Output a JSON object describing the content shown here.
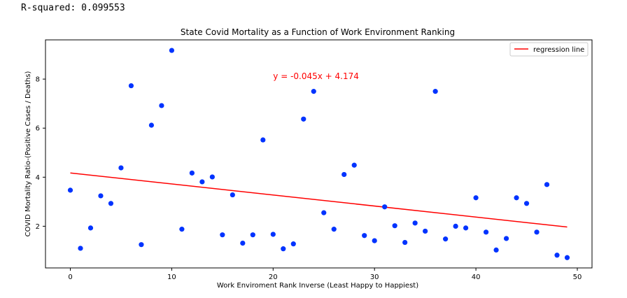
{
  "console": {
    "text": "R-squared: 0.099553"
  },
  "chart_data": {
    "type": "scatter",
    "title": "State Covid Mortality as a Function of Work Environment Ranking",
    "xlabel": "Work Enviroment Rank Inverse (Least Happy to Happiest)",
    "ylabel": "COVID Mortality Ratio-(Positive Cases / Deaths)",
    "xlim": [
      -2.45,
      51.45
    ],
    "ylim": [
      0.3,
      9.6
    ],
    "xticks": [
      0,
      10,
      20,
      30,
      40,
      50
    ],
    "yticks": [
      2,
      4,
      6,
      8
    ],
    "grid": false,
    "legend": {
      "placement": "top-right",
      "entries": [
        "regression line"
      ]
    },
    "annotation": {
      "text": "y = -0.045x + 4.174",
      "x": 20,
      "y": 8.0,
      "color": "#ff0000"
    },
    "point_color": "#0033ff",
    "line_color": "#ff0000",
    "regression": {
      "slope": -0.045,
      "intercept": 4.174,
      "x_range": [
        0,
        49
      ]
    },
    "x": [
      0,
      1,
      2,
      3,
      4,
      5,
      6,
      7,
      8,
      9,
      10,
      11,
      12,
      13,
      14,
      15,
      16,
      17,
      18,
      19,
      20,
      21,
      22,
      23,
      24,
      25,
      26,
      27,
      28,
      29,
      30,
      31,
      32,
      33,
      34,
      35,
      36,
      37,
      38,
      39,
      40,
      41,
      42,
      43,
      44,
      45,
      46,
      47,
      48,
      49
    ],
    "y": [
      3.47,
      1.1,
      1.93,
      3.24,
      2.93,
      4.38,
      7.73,
      1.25,
      6.12,
      6.92,
      9.17,
      1.88,
      4.17,
      3.81,
      4.01,
      1.65,
      3.28,
      1.31,
      1.65,
      5.52,
      1.67,
      1.08,
      1.28,
      6.37,
      7.5,
      2.55,
      1.88,
      4.11,
      4.49,
      1.62,
      1.41,
      2.79,
      2.02,
      1.34,
      2.13,
      1.8,
      7.5,
      1.48,
      2.0,
      1.93,
      3.16,
      1.76,
      1.03,
      1.5,
      3.16,
      2.93,
      1.76,
      3.7,
      0.82,
      0.72
    ]
  }
}
